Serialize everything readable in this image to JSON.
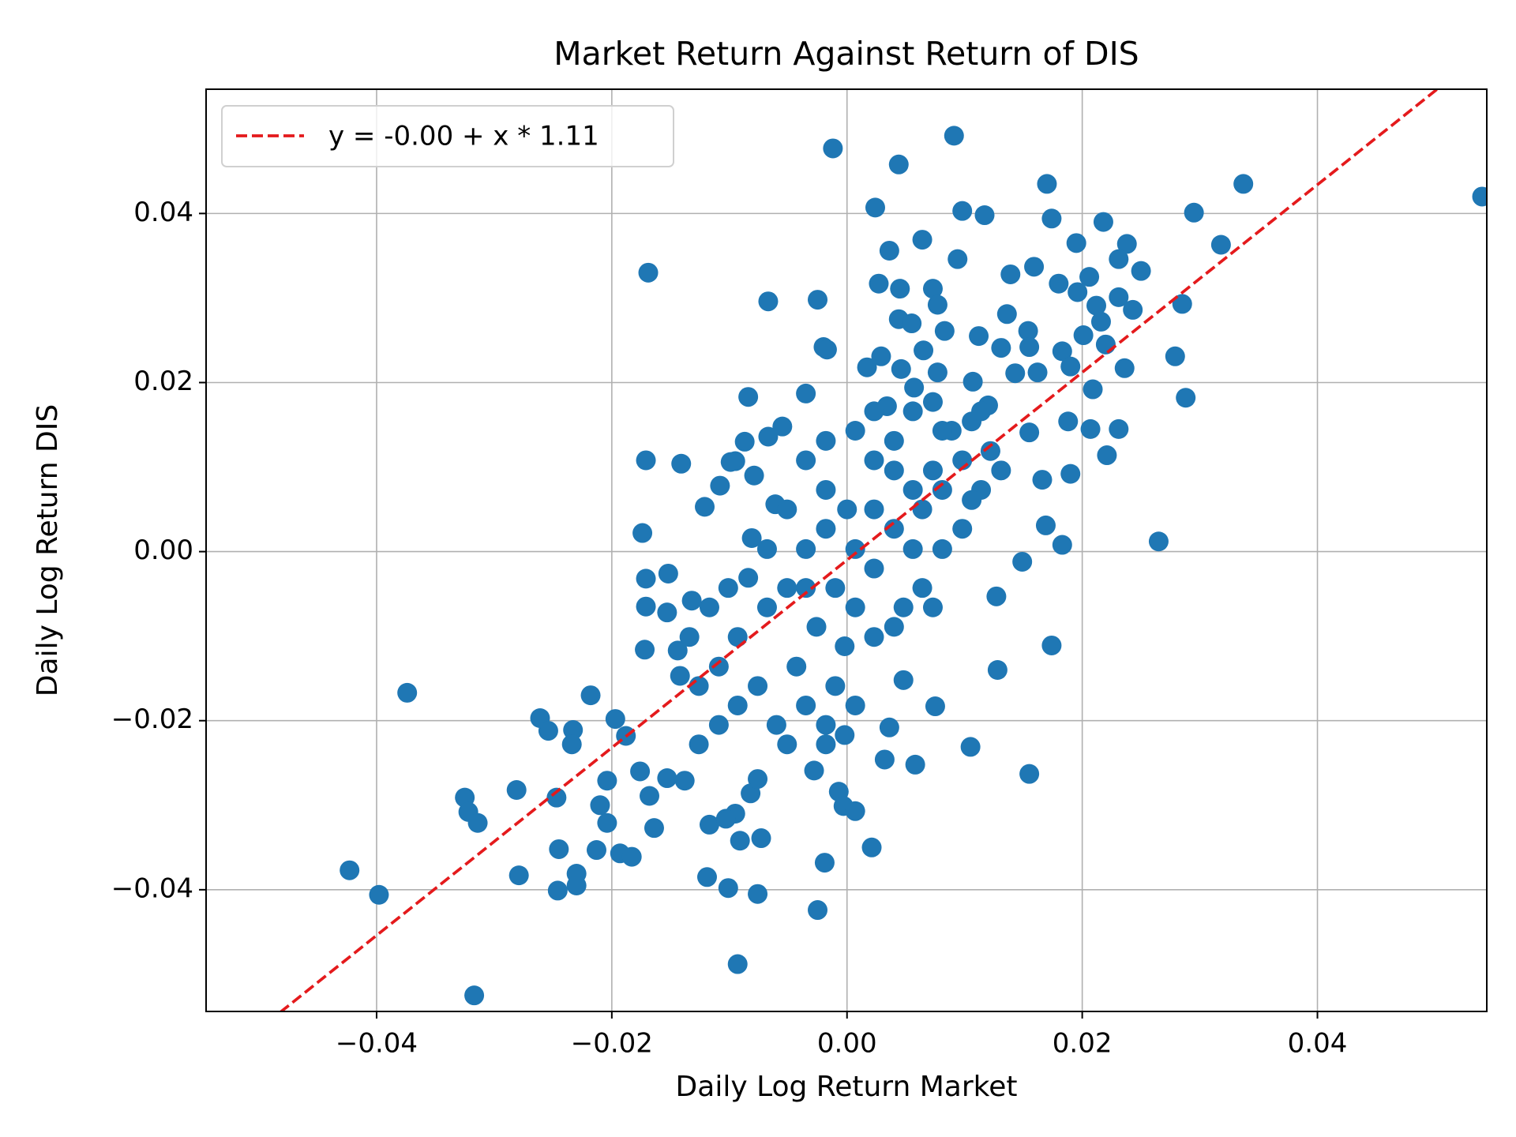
{
  "chart_data": {
    "type": "scatter",
    "title": "Market Return Against Return of DIS",
    "x_label": "Daily Log Return Market",
    "y_label": "Daily Log Return DIS",
    "color": "#1f77b4",
    "x": [
      0.054,
      0.0091,
      -0.0012,
      0.0044,
      0.0337,
      0.017,
      0.0024,
      0.0098,
      0.0117,
      0.0295,
      0.0218,
      0.0174,
      0.0064,
      0.0195,
      0.0238,
      0.0318,
      0.0036,
      0.0094,
      0.0231,
      0.025,
      0.0139,
      0.0159,
      0.018,
      -0.0169,
      0.0027,
      0.0045,
      0.0073,
      0.0206,
      0.0196,
      -0.0067,
      -0.0025,
      0.0077,
      0.0231,
      0.0285,
      0.0212,
      0.0243,
      0.0044,
      0.0055,
      0.0136,
      0.0216,
      0.0083,
      0.0112,
      0.0154,
      0.0201,
      -0.002,
      -0.0017,
      0.0155,
      0.022,
      0.0131,
      0.0029,
      0.0065,
      0.0183,
      0.0279,
      0.0017,
      0.0046,
      0.0077,
      0.0236,
      0.019,
      0.0143,
      0.0162,
      0.0057,
      0.0107,
      0.0209,
      -0.0084,
      -0.0035,
      0.0288,
      0.0034,
      0.012,
      0.0188,
      0.0207,
      0.0231,
      -0.0055,
      -0.0067,
      -0.0087,
      0.0155,
      0.0221,
      -0.0171,
      -0.0141,
      -0.0095,
      -0.0099,
      -0.0079,
      -0.0108,
      0.019,
      0.0166,
      -0.0121,
      -0.0061,
      -0.0174,
      -0.0081,
      0.0265,
      0.0183,
      0.0149,
      0.0169,
      -0.0171,
      -0.0152,
      -0.0171,
      -0.0153,
      -0.0132,
      0.0127,
      -0.0172,
      -0.0144,
      0.0174,
      -0.0374,
      -0.0218,
      -0.0261,
      -0.0254,
      -0.0233,
      -0.0234,
      -0.0197,
      -0.0188,
      0.0128,
      0.0048,
      0.0075,
      0.0036,
      0.0105,
      0.0032,
      0.0058,
      0.0155,
      -0.0176,
      -0.0153,
      -0.0138,
      -0.0204,
      -0.0281,
      -0.0325,
      -0.0247,
      -0.0168,
      -0.021,
      -0.0322,
      -0.0314,
      -0.0204,
      -0.0164,
      -0.0117,
      -0.0082,
      -0.0076,
      -0.0028,
      -0.0007,
      -0.0003,
      0.0007,
      -0.0095,
      -0.0103,
      -0.0091,
      -0.0073,
      0.0021,
      -0.0019,
      -0.0245,
      -0.0213,
      -0.0193,
      -0.0183,
      -0.0423,
      -0.0279,
      -0.023,
      -0.0119,
      -0.0246,
      -0.023,
      -0.0398,
      -0.0101,
      -0.0076,
      -0.0025,
      -0.0093,
      -0.0317,
      0,
      -0.0018,
      0.0023,
      0.004,
      -0.0035,
      -0.0051,
      -0.0068,
      -0.0093,
      -0.0109,
      0.0007,
      -0.001,
      0.0023,
      0.0056,
      0.0073,
      0.0089,
      0.0106,
      0.0122,
      -0.0026,
      -0.0043,
      -0.0076,
      -0.0093,
      -0.0109,
      -0.0126,
      -0.001,
      0.0007,
      0.0023,
      0.0048,
      0.0064,
      0.0081,
      0.0098,
      0.0114,
      0.0131,
      -0.0018,
      -0.0035,
      -0.0051,
      -0.0068,
      -0.0084,
      -0.0101,
      -0.0117,
      -0.0134,
      -0.0142,
      -0.0126,
      0.0007,
      0.0023,
      0.004,
      0.0056,
      0.0073,
      0.004,
      -0.0018,
      -0.0035,
      0.0007,
      0.0023,
      0.0056,
      0.0073,
      0.0098,
      0.0114,
      -0.0002,
      -0.0018,
      -0.0035,
      -0.006,
      -0.0051,
      -0.0018,
      -0.0002,
      0.0064,
      0.0081,
      0.0106,
      0.0081,
      0.004
    ],
    "values": [
      0.042,
      0.0492,
      0.0477,
      0.0458,
      0.0435,
      0.0435,
      0.0407,
      0.0403,
      0.0398,
      0.0401,
      0.039,
      0.0394,
      0.0369,
      0.0365,
      0.0364,
      0.0363,
      0.0356,
      0.0346,
      0.0346,
      0.0332,
      0.0328,
      0.0337,
      0.0317,
      0.033,
      0.0317,
      0.0311,
      0.0311,
      0.0325,
      0.0307,
      0.0296,
      0.0298,
      0.0292,
      0.0301,
      0.0293,
      0.0291,
      0.0286,
      0.0275,
      0.027,
      0.0281,
      0.0272,
      0.0261,
      0.0255,
      0.0261,
      0.0256,
      0.0242,
      0.0239,
      0.0242,
      0.0245,
      0.0241,
      0.0231,
      0.0238,
      0.0237,
      0.0231,
      0.0218,
      0.0216,
      0.0212,
      0.0217,
      0.0219,
      0.0211,
      0.0212,
      0.0194,
      0.0201,
      0.0192,
      0.0183,
      0.0187,
      0.0182,
      0.0172,
      0.0173,
      0.0154,
      0.0145,
      0.0145,
      0.0148,
      0.0136,
      0.013,
      0.0141,
      0.0114,
      0.0108,
      0.0104,
      0.0107,
      0.0106,
      0.009,
      0.0078,
      0.0092,
      0.0085,
      0.0053,
      0.0056,
      0.0022,
      0.0016,
      0.0012,
      0.0008,
      -0.0012,
      0.0031,
      -0.0032,
      -0.0026,
      -0.0065,
      -0.0072,
      -0.0058,
      -0.0053,
      -0.0116,
      -0.0117,
      -0.0111,
      -0.0167,
      -0.017,
      -0.0197,
      -0.0212,
      -0.0211,
      -0.0228,
      -0.0198,
      -0.0218,
      -0.014,
      -0.0152,
      -0.0183,
      -0.0208,
      -0.0231,
      -0.0246,
      -0.0252,
      -0.0263,
      -0.026,
      -0.0268,
      -0.0271,
      -0.0271,
      -0.0282,
      -0.0291,
      -0.0291,
      -0.0289,
      -0.03,
      -0.0308,
      -0.0321,
      -0.0321,
      -0.0327,
      -0.0323,
      -0.0286,
      -0.0269,
      -0.0259,
      -0.0284,
      -0.0301,
      -0.0307,
      -0.031,
      -0.0316,
      -0.0342,
      -0.0339,
      -0.035,
      -0.0368,
      -0.0352,
      -0.0353,
      -0.0357,
      -0.0361,
      -0.0377,
      -0.0383,
      -0.0381,
      -0.0385,
      -0.0401,
      -0.0395,
      -0.0406,
      -0.0398,
      -0.0405,
      -0.0424,
      -0.0488,
      -0.0525,
      0.005,
      0.0073,
      0.0108,
      0.0131,
      0.0003,
      -0.0043,
      -0.0066,
      -0.0101,
      -0.0136,
      0.0003,
      -0.0043,
      0.005,
      0.0073,
      0.0096,
      0.0143,
      0.0154,
      0.0119,
      -0.0089,
      -0.0136,
      -0.0159,
      -0.0182,
      -0.0205,
      -0.0228,
      -0.0159,
      -0.0182,
      -0.0101,
      -0.0066,
      -0.0043,
      0.0003,
      0.0027,
      0.0073,
      0.0096,
      0.0131,
      0.0108,
      0.005,
      0.0003,
      -0.0031,
      -0.0043,
      -0.0066,
      -0.0101,
      -0.0147,
      -0.0159,
      -0.0066,
      -0.002,
      0.0027,
      0.0003,
      -0.0066,
      -0.0089,
      0.0027,
      -0.0043,
      0.0143,
      0.0166,
      0.0166,
      0.0177,
      0.0108,
      0.0166,
      -0.0112,
      -0.0205,
      -0.0182,
      -0.0205,
      -0.0228,
      -0.0228,
      -0.0217,
      0.005,
      0.0073,
      0.0061,
      0.0143,
      0.0096
    ],
    "fit": {
      "name": "y = -0.00 + x * 1.11",
      "intercept": -0.001,
      "slope": 1.11,
      "color": "#e41a1c"
    },
    "xlim": [
      -0.0545,
      0.0544
    ],
    "ylim": [
      -0.0544,
      0.0547
    ],
    "xticks": [
      {
        "value": -0.04,
        "label": "−0.04"
      },
      {
        "value": -0.02,
        "label": "−0.02"
      },
      {
        "value": 0,
        "label": "0.00"
      },
      {
        "value": 0.02,
        "label": "0.02"
      },
      {
        "value": 0.04,
        "label": "0.04"
      }
    ],
    "yticks": [
      {
        "value": -0.04,
        "label": "−0.04"
      },
      {
        "value": -0.02,
        "label": "−0.02"
      },
      {
        "value": 0,
        "label": "0.00"
      },
      {
        "value": 0.02,
        "label": "0.02"
      },
      {
        "value": 0.04,
        "label": "0.04"
      }
    ],
    "grid": true,
    "legend": "upper left"
  }
}
